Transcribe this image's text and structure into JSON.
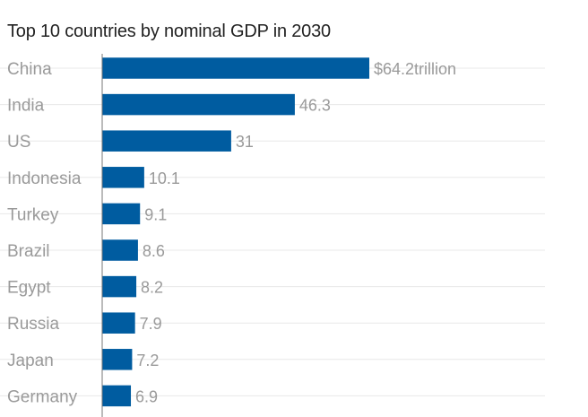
{
  "colors": {
    "bar": "#005ca0",
    "grid": "#e8e8e8",
    "axis": "#777777",
    "label": "#9a9a9a",
    "title": "#222222"
  },
  "chart_data": {
    "type": "bar",
    "orientation": "horizontal",
    "title": "Top 10 countries by nominal GDP in 2030",
    "categories": [
      "China",
      "India",
      "US",
      "Indonesia",
      "Turkey",
      "Brazil",
      "Egypt",
      "Russia",
      "Japan",
      "Germany"
    ],
    "values": [
      64.2,
      46.3,
      31,
      10.1,
      9.1,
      8.6,
      8.2,
      7.9,
      7.2,
      6.9
    ],
    "value_labels": [
      "$64.2trillion",
      "46.3",
      "31",
      "10.1",
      "9.1",
      "8.6",
      "8.2",
      "7.9",
      "7.2",
      "6.9"
    ],
    "xlabel": "",
    "ylabel": "",
    "xlim": [
      0,
      64.2
    ],
    "grid": true,
    "legend": "none"
  }
}
